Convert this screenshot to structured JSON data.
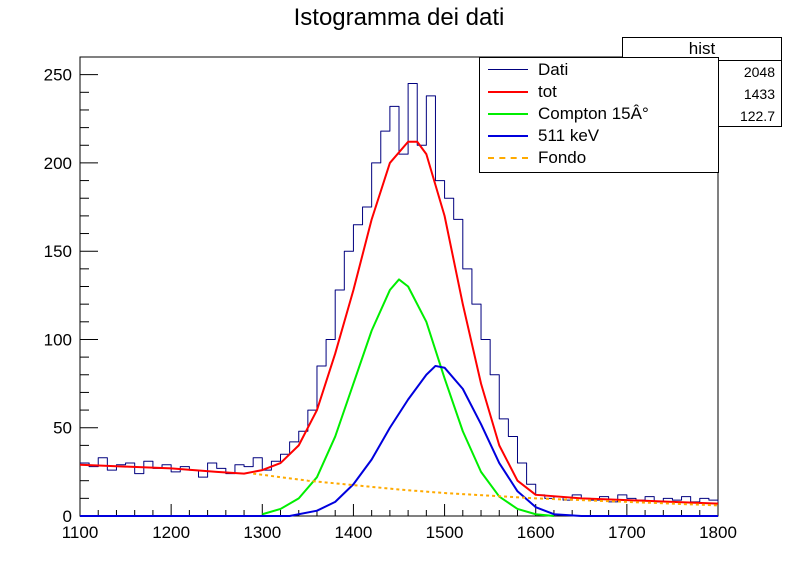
{
  "chart_data": {
    "type": "line",
    "title": "Istogramma dei dati",
    "xlabel": "",
    "ylabel": "",
    "xlim": [
      1100,
      1800
    ],
    "ylim": [
      0,
      260
    ],
    "x_ticks": [
      "1100",
      "1200",
      "1300",
      "1400",
      "1500",
      "1600",
      "1700",
      "1800"
    ],
    "y_ticks": [
      "0",
      "50",
      "100",
      "150",
      "200",
      "250"
    ],
    "legend_position": "top-right",
    "series": [
      {
        "name": "Dati",
        "color": "#00007f",
        "style": "step",
        "x": [
          1100,
          1110,
          1120,
          1130,
          1140,
          1150,
          1160,
          1170,
          1180,
          1190,
          1200,
          1210,
          1220,
          1230,
          1240,
          1250,
          1260,
          1270,
          1280,
          1290,
          1300,
          1310,
          1320,
          1330,
          1340,
          1350,
          1360,
          1370,
          1380,
          1390,
          1400,
          1410,
          1420,
          1430,
          1440,
          1450,
          1460,
          1470,
          1480,
          1490,
          1500,
          1510,
          1520,
          1530,
          1540,
          1550,
          1560,
          1570,
          1580,
          1590,
          1600,
          1610,
          1620,
          1630,
          1640,
          1650,
          1660,
          1670,
          1680,
          1690,
          1700,
          1710,
          1720,
          1730,
          1740,
          1750,
          1760,
          1770,
          1780,
          1790,
          1800
        ],
        "y": [
          30,
          28,
          33,
          26,
          29,
          30,
          24,
          31,
          27,
          29,
          25,
          28,
          26,
          22,
          30,
          27,
          24,
          29,
          28,
          33,
          26,
          31,
          35,
          42,
          48,
          60,
          85,
          100,
          128,
          150,
          165,
          175,
          200,
          218,
          232,
          205,
          245,
          210,
          238,
          190,
          180,
          168,
          140,
          120,
          100,
          80,
          55,
          45,
          30,
          18,
          12,
          10,
          11,
          9,
          12,
          10,
          9,
          11,
          8,
          12,
          10,
          9,
          11,
          8,
          10,
          9,
          11,
          8,
          10,
          9,
          8
        ]
      },
      {
        "name": "tot",
        "color": "#ff0000",
        "style": "line",
        "x": [
          1100,
          1150,
          1200,
          1250,
          1280,
          1300,
          1320,
          1340,
          1360,
          1380,
          1400,
          1420,
          1440,
          1460,
          1470,
          1480,
          1500,
          1520,
          1540,
          1560,
          1580,
          1600,
          1650,
          1700,
          1750,
          1800
        ],
        "y": [
          29,
          28,
          27,
          25,
          24,
          26,
          30,
          40,
          60,
          92,
          128,
          168,
          200,
          212,
          212,
          205,
          170,
          120,
          75,
          40,
          20,
          12,
          10,
          9,
          8,
          7
        ]
      },
      {
        "name": "Compton 15Â°",
        "color": "#00ee00",
        "style": "line",
        "x": [
          1300,
          1320,
          1340,
          1360,
          1380,
          1400,
          1420,
          1440,
          1450,
          1460,
          1480,
          1500,
          1520,
          1540,
          1560,
          1580,
          1600,
          1620
        ],
        "y": [
          1,
          4,
          10,
          22,
          45,
          75,
          105,
          128,
          134,
          130,
          110,
          78,
          48,
          25,
          11,
          4,
          1,
          0
        ]
      },
      {
        "name": " 511 keV",
        "color": "#0000dd",
        "style": "line",
        "x": [
          1100,
          1300,
          1330,
          1360,
          1380,
          1400,
          1420,
          1440,
          1460,
          1480,
          1490,
          1500,
          1520,
          1540,
          1560,
          1580,
          1600,
          1620,
          1650,
          1800
        ],
        "y": [
          0,
          0,
          0,
          3,
          8,
          18,
          32,
          50,
          66,
          80,
          85,
          84,
          72,
          52,
          30,
          14,
          5,
          1,
          0,
          0
        ]
      },
      {
        "name": "Fondo",
        "color": "#ffaa00",
        "style": "dashed",
        "x": [
          1290,
          1350,
          1400,
          1450,
          1500,
          1550,
          1600,
          1650,
          1700,
          1750,
          1800
        ],
        "y": [
          24,
          20,
          17.5,
          15,
          13,
          11.5,
          10,
          9,
          8,
          7,
          6
        ]
      }
    ]
  },
  "stats_box": {
    "title": "hist",
    "rows": [
      {
        "label": "",
        "value": "2048"
      },
      {
        "label": "",
        "value": "1433"
      },
      {
        "label": "",
        "value": "122.7"
      }
    ]
  }
}
